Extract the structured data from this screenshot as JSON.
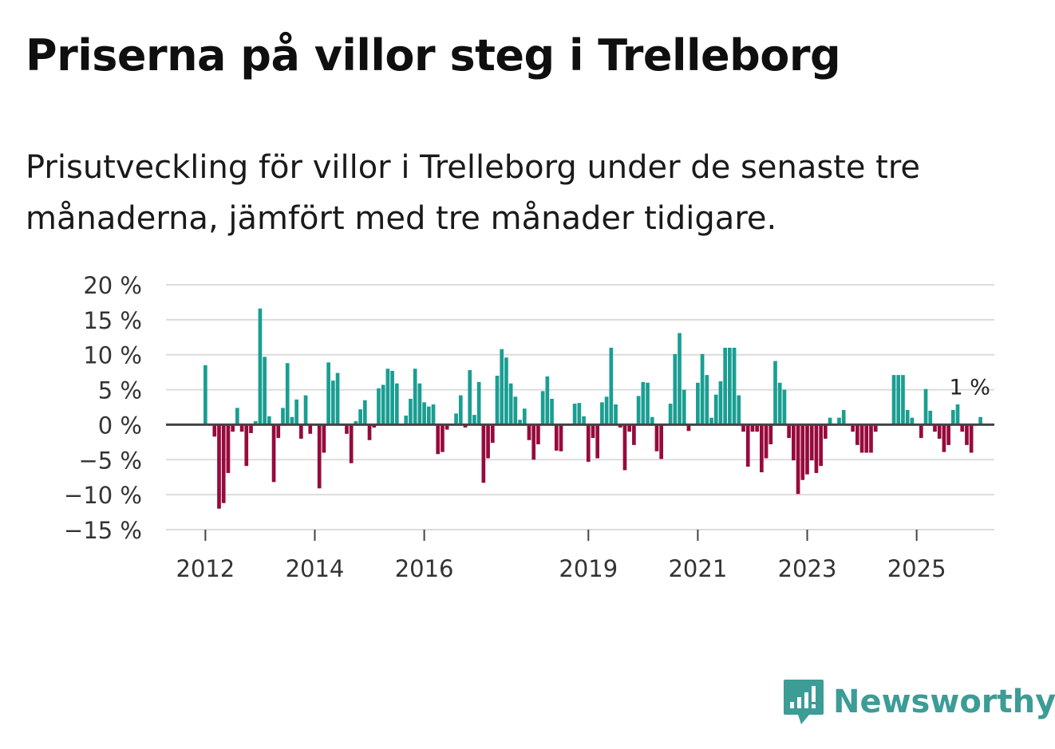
{
  "title": "Priserna på villor steg i Trelleborg",
  "subtitle": "Prisutveckling för villor i Trelleborg under de senaste tre månaderna, jämfört med tre månader tidigare.",
  "brand": {
    "name": "Newsworthy",
    "icon": "newsworthy-logo-icon",
    "color": "#3c9c96"
  },
  "colors": {
    "positive": "#1a9e92",
    "negative": "#960a3c",
    "grid": "#dcdcdc",
    "zero": "#444444",
    "axis_text": "#333333"
  },
  "chart_data": {
    "type": "bar",
    "title": "Priserna på villor steg i Trelleborg",
    "xlabel": "",
    "ylabel": "",
    "ylim": [
      -15,
      20
    ],
    "y_ticks": [
      20,
      15,
      10,
      5,
      0,
      -5,
      -10,
      -15
    ],
    "y_tick_labels": [
      "20 %",
      "15 %",
      "10 %",
      "5 %",
      "0 %",
      "−5 %",
      "−10 %",
      "−15 %"
    ],
    "x_ticks": [
      2012,
      2014,
      2016,
      2019,
      2021,
      2023,
      2025
    ],
    "x_tick_labels": [
      "2012",
      "2014",
      "2016",
      "2019",
      "2021",
      "2023",
      "2025"
    ],
    "x_range": [
      2011.28,
      2026.42
    ],
    "start": 2012.0,
    "step": 0.08333,
    "annotation": {
      "label": "1 %",
      "value": 1,
      "x": 2025.625
    },
    "values": [
      8.5,
      0,
      -1.7,
      -12,
      -11.2,
      -6.9,
      -1,
      2.4,
      -1,
      -5.9,
      -1.2,
      0.5,
      16.6,
      9.7,
      1.2,
      -8.2,
      -1.9,
      2.4,
      8.8,
      1.1,
      3.6,
      -2,
      4.2,
      -1.3,
      0,
      -9.1,
      -4,
      8.9,
      6.3,
      7.4,
      0,
      -1.3,
      -5.5,
      0.5,
      2.2,
      3.5,
      -2.2,
      -0.4,
      5.2,
      5.7,
      8,
      7.7,
      5.9,
      0,
      1.3,
      3.7,
      8,
      5.9,
      3.2,
      2.6,
      2.9,
      -4.2,
      -3.9,
      -0.7,
      0,
      1.6,
      4.2,
      -0.4,
      7.8,
      1.4,
      6.1,
      -8.3,
      -4.8,
      -2.6,
      7,
      10.8,
      9.6,
      5.9,
      4,
      0.7,
      2.3,
      -2.2,
      -5,
      -2.8,
      4.8,
      6.9,
      3.7,
      -3.7,
      -3.8,
      0,
      0,
      3,
      3.1,
      1.2,
      -5.3,
      -1.9,
      -4.8,
      3.2,
      4,
      11,
      2.9,
      -0.4,
      -6.5,
      -1,
      -2.9,
      4.1,
      6.1,
      6,
      1.1,
      -3.8,
      -4.9,
      0,
      3,
      10.1,
      13.1,
      5,
      -0.9,
      0,
      6,
      10.1,
      7.1,
      1,
      4.3,
      6.2,
      11,
      11,
      11,
      4.2,
      -1,
      -6,
      -1,
      -1,
      -6.8,
      -4.8,
      -2.8,
      9.1,
      6,
      5,
      -1.9,
      -5.1,
      -9.9,
      -7.9,
      -7.1,
      -5.1,
      -6.9,
      -5.9,
      -2,
      1,
      0,
      1,
      2.1,
      0,
      -1,
      -2.9,
      -4,
      -4,
      -4,
      -1,
      0,
      0,
      0,
      7.1,
      7.1,
      7.1,
      2.1,
      1,
      0,
      -1.9,
      5.1,
      2,
      -1,
      -2,
      -3.9,
      -2.9,
      2.1,
      2.9,
      -1,
      -2.9,
      -4,
      0,
      1.1
    ]
  }
}
